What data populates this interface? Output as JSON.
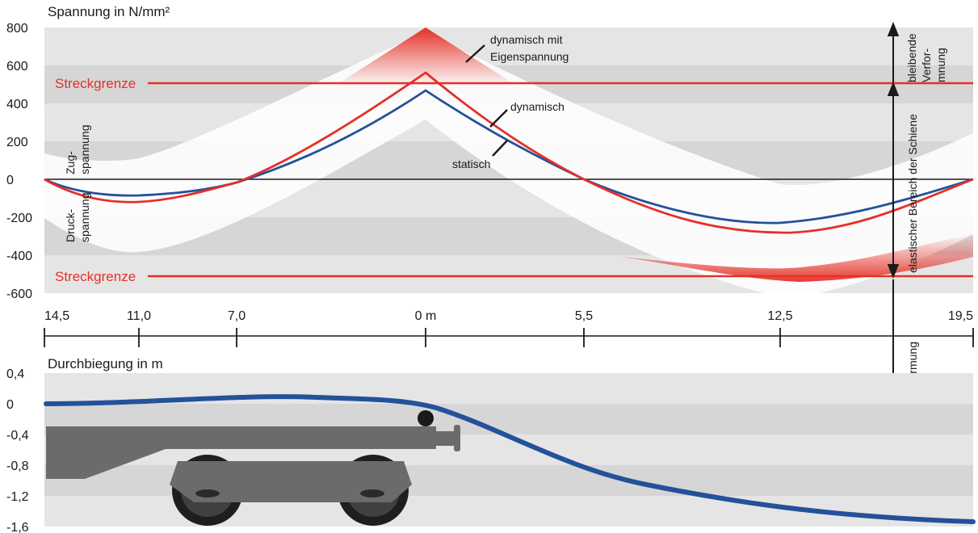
{
  "chart_data": [
    {
      "type": "line",
      "title": "Spannung in N/mm²",
      "ylim": [
        -600,
        800
      ],
      "y_ticks": [
        "800",
        "600",
        "400",
        "200",
        "0",
        "-200",
        "-400",
        "-600"
      ],
      "x_ticks": [
        "14,5",
        "11,0",
        "7,0",
        "0 m",
        "5,5",
        "12,5",
        "19,5"
      ],
      "grid": "horizontal bands",
      "series": [
        {
          "name": "statisch",
          "color": "#23519a",
          "x": [
            "14,5",
            "11,0",
            "7,0",
            "0 m",
            "5,5",
            "12,5",
            "19,5"
          ],
          "y": [
            0,
            -85,
            -35,
            470,
            0,
            -230,
            0
          ]
        },
        {
          "name": "dynamisch",
          "color": "#e53027",
          "x": [
            "14,5",
            "11,0",
            "7,0",
            "0 m",
            "5,5",
            "12,5",
            "19,5"
          ],
          "y": [
            0,
            -125,
            -25,
            560,
            0,
            -285,
            0
          ]
        }
      ],
      "reference_lines": [
        {
          "label": "Streckgrenze",
          "y": 500,
          "color": "#e53027"
        },
        {
          "label": "Streckgrenze",
          "y": -510,
          "color": "#e53027"
        }
      ],
      "annotations": {
        "dyn_eigen_1": "dynamisch mit",
        "dyn_eigen_2": "Eigenspannung",
        "dynamisch": "dynamisch",
        "statisch": "statisch",
        "zug_1": "Zug-",
        "zug_2": "spannung",
        "druck_1": "Druck-",
        "druck_2": "spannung",
        "verform_1": "bleibende",
        "verform_2": "Verfor-",
        "verform_3": "mnung",
        "elastisch": "elastischer Bereich der Schiene",
        "bleibend": "bleibende Verformung"
      }
    },
    {
      "type": "line",
      "title": "Durchbiegung in m",
      "ylim": [
        -1.6,
        0.4
      ],
      "y_ticks": [
        "0,4",
        "0",
        "-0,4",
        "-0,8",
        "-1,2",
        "-1,6"
      ],
      "grid": "horizontal bands",
      "series": [
        {
          "color": "#23519a",
          "y_start": 0,
          "y_max": 0.07,
          "y_end": -1.55
        }
      ]
    }
  ]
}
